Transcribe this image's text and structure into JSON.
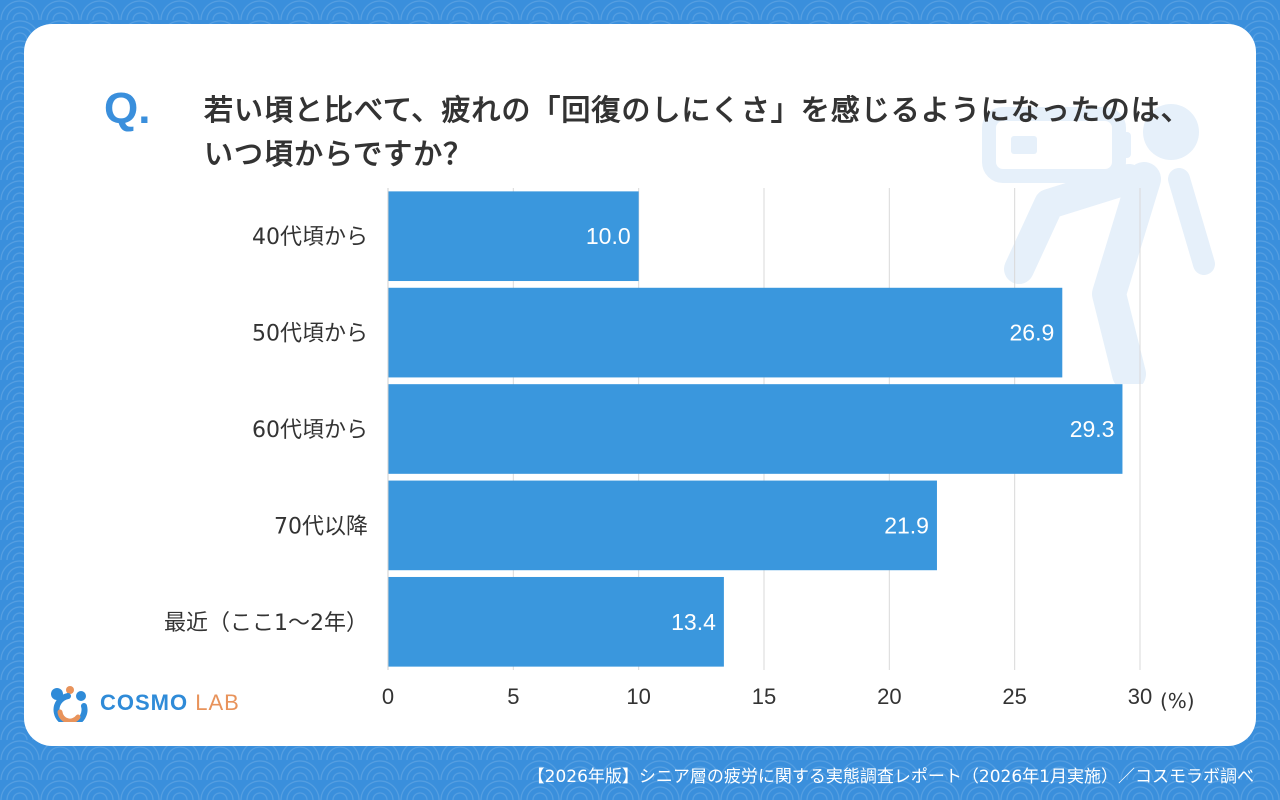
{
  "question": {
    "mark": "Q.",
    "text": "若い頃と比べて、疲れの「回復のしにくさ」を感じるようになったのは、いつ頃からですか？"
  },
  "chart_data": {
    "type": "bar",
    "orientation": "horizontal",
    "categories": [
      "40代頃から",
      "50代頃から",
      "60代頃から",
      "70代以降",
      "最近（ここ1～2年）"
    ],
    "values": [
      10.0,
      26.9,
      29.3,
      21.9,
      13.4
    ],
    "value_labels": [
      "10.0",
      "26.9",
      "29.3",
      "21.9",
      "13.4"
    ],
    "x_ticks": [
      "0",
      "5",
      "10",
      "15",
      "20",
      "25",
      "30"
    ],
    "xlim": [
      0,
      30
    ],
    "unit": "(%)",
    "grid": true,
    "bar_color": "#3a97dd"
  },
  "logo": {
    "name": "COSMO",
    "suffix": "LAB"
  },
  "footer": {
    "text": "【2026年版】シニア層の疲労に関する実態調査レポート（2026年1月実施）／コスモラボ調べ"
  },
  "colors": {
    "background": "#3a8fdc",
    "accent": "#3a8fdc",
    "text": "#333333"
  }
}
